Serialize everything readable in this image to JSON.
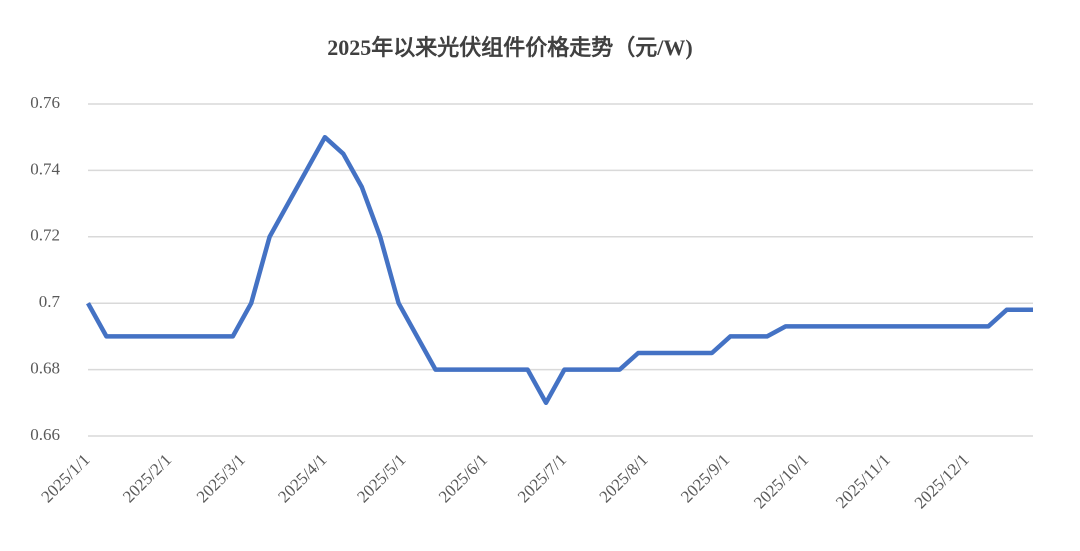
{
  "chart_data": {
    "type": "line",
    "title": "2025年以来光伏组件价格走势（元/W)",
    "x": [
      "2025/1/1",
      "2025/1/8",
      "2025/2/25",
      "2025/3/4",
      "2025/3/11",
      "2025/4/1",
      "2025/4/8",
      "2025/4/15",
      "2025/4/22",
      "2025/4/29",
      "2025/5/13",
      "2025/6/17",
      "2025/6/24",
      "2025/7/1",
      "2025/7/22",
      "2025/7/29",
      "2025/8/26",
      "2025/9/2",
      "2025/9/16",
      "2025/9/23",
      "2025/12/9",
      "2025/12/16",
      "2025/12/26"
    ],
    "series": [
      {
        "color": "#4472c4",
        "values": [
          0.7,
          0.69,
          0.69,
          0.7,
          0.72,
          0.75,
          0.745,
          0.735,
          0.72,
          0.7,
          0.68,
          0.68,
          0.67,
          0.68,
          0.68,
          0.685,
          0.685,
          0.69,
          0.69,
          0.693,
          0.693,
          0.698,
          0.698
        ]
      }
    ],
    "xlim": [
      "2025/1/1",
      "2025/12/26"
    ],
    "xticks": [
      "2025/1/1",
      "2025/2/1",
      "2025/3/1",
      "2025/4/1",
      "2025/5/1",
      "2025/6/1",
      "2025/7/1",
      "2025/8/1",
      "2025/9/1",
      "2025/10/1",
      "2025/11/1",
      "2025/12/1"
    ],
    "ylim": [
      0.66,
      0.76
    ],
    "yticks": [
      0.66,
      0.68,
      0.7,
      0.72,
      0.74,
      0.76
    ],
    "grid": true
  }
}
